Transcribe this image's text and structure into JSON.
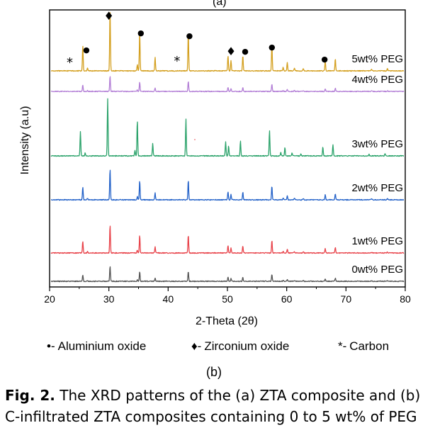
{
  "chart_data": {
    "type": "line",
    "xlabel": "2-Theta (2θ)",
    "ylabel": "Intensity (a.u)",
    "xlim": [
      20,
      80
    ],
    "xticks": [
      "20",
      "30",
      "40",
      "50",
      "60",
      "70",
      "80"
    ],
    "peaks": [
      {
        "x": 25.6,
        "h": 0.42
      },
      {
        "x": 26.4,
        "h": 0.05
      },
      {
        "x": 30.2,
        "h": 1.0
      },
      {
        "x": 34.8,
        "h": 0.1
      },
      {
        "x": 35.2,
        "h": 0.62
      },
      {
        "x": 37.8,
        "h": 0.22
      },
      {
        "x": 43.4,
        "h": 0.64
      },
      {
        "x": 50.1,
        "h": 0.25
      },
      {
        "x": 50.6,
        "h": 0.17
      },
      {
        "x": 52.6,
        "h": 0.26
      },
      {
        "x": 57.5,
        "h": 0.45
      },
      {
        "x": 59.4,
        "h": 0.06
      },
      {
        "x": 60.1,
        "h": 0.14
      },
      {
        "x": 61.3,
        "h": 0.05
      },
      {
        "x": 62.8,
        "h": 0.04
      },
      {
        "x": 66.5,
        "h": 0.16
      },
      {
        "x": 68.2,
        "h": 0.2
      },
      {
        "x": 74.3,
        "h": 0.03
      },
      {
        "x": 77.0,
        "h": 0.04
      }
    ],
    "series": [
      {
        "name": "0wt% PEG",
        "color": "#555555",
        "scale": 0.38,
        "shift": 0.0
      },
      {
        "name": "1wt% PEG",
        "color": "#e8434a",
        "scale": 0.82,
        "shift": 0.0
      },
      {
        "name": "2wt% PEG",
        "color": "#2563c9",
        "scale": 0.71,
        "shift": 0.0
      },
      {
        "name": "3wt% PEG",
        "color": "#2ca36b",
        "scale": 1.0,
        "shift": -0.4
      },
      {
        "name": "4wt% PEG",
        "color": "#b37fd6",
        "scale": 0.28,
        "shift": 0.0
      },
      {
        "name": "5wt% PEG",
        "color": "#d4a020",
        "scale": 1.0,
        "shift": 0.0
      }
    ],
    "markers": [
      {
        "symbol": "*",
        "x": 23.4
      },
      {
        "symbol": "●",
        "x": 26.2
      },
      {
        "symbol": "♦",
        "x": 30.0
      },
      {
        "symbol": "●",
        "x": 35.4
      },
      {
        "symbol": "*",
        "x": 41.5
      },
      {
        "symbol": "●",
        "x": 43.6
      },
      {
        "symbol": "♦",
        "x": 50.6
      },
      {
        "symbol": "●",
        "x": 53.0
      },
      {
        "symbol": "●",
        "x": 57.5
      },
      {
        "symbol": "●",
        "x": 66.4
      }
    ]
  },
  "top_label": "(a)",
  "legend": {
    "alumina": {
      "symbol": "•-",
      "label": "Aluminium oxide"
    },
    "zirconia": {
      "symbol": "♦-",
      "label": "Zirconium oxide"
    },
    "carbon": {
      "symbol": "*-",
      "label": "Carbon"
    }
  },
  "sub_label": "(b)",
  "caption": {
    "prefix": "Fig. 2.",
    "text": " The XRD patterns of the (a) ZTA composite and (b) C-infiltrated ZTA composites containing 0 to 5 wt% of PEG"
  }
}
